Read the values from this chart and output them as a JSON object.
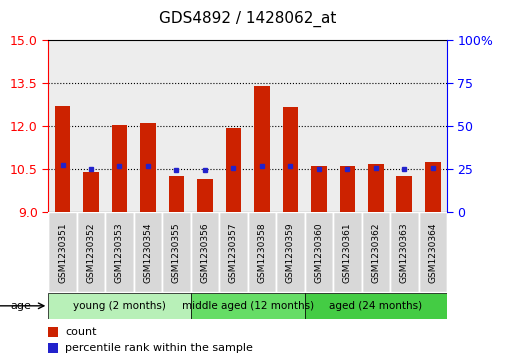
{
  "title": "GDS4892 / 1428062_at",
  "samples": [
    "GSM1230351",
    "GSM1230352",
    "GSM1230353",
    "GSM1230354",
    "GSM1230355",
    "GSM1230356",
    "GSM1230357",
    "GSM1230358",
    "GSM1230359",
    "GSM1230360",
    "GSM1230361",
    "GSM1230362",
    "GSM1230363",
    "GSM1230364"
  ],
  "count_values": [
    12.7,
    10.4,
    12.05,
    12.1,
    10.25,
    10.15,
    11.95,
    13.4,
    12.65,
    10.6,
    10.6,
    10.7,
    10.25,
    10.75
  ],
  "percentile_values": [
    10.65,
    10.5,
    10.62,
    10.63,
    10.48,
    10.47,
    10.55,
    10.63,
    10.63,
    10.52,
    10.5,
    10.55,
    10.5,
    10.55
  ],
  "y_min": 9,
  "y_max": 15,
  "y_ticks_left": [
    9,
    10.5,
    12,
    13.5,
    15
  ],
  "y_ticks_right_vals": [
    0,
    25,
    50,
    75,
    100
  ],
  "y_ticks_right_labels": [
    "0",
    "25",
    "50",
    "75",
    "100%"
  ],
  "bar_color": "#cc2200",
  "percentile_color": "#2222cc",
  "sample_cell_color": "#d8d8d8",
  "groups": [
    {
      "label": "young (2 months)",
      "start": 0,
      "end": 5,
      "color": "#b8f0b8"
    },
    {
      "label": "middle aged (12 months)",
      "start": 5,
      "end": 9,
      "color": "#66dd66"
    },
    {
      "label": "aged (24 months)",
      "start": 9,
      "end": 14,
      "color": "#44cc44"
    }
  ],
  "age_label": "age",
  "legend_count_label": "count",
  "legend_pct_label": "percentile rank within the sample",
  "title_fontsize": 11,
  "axis_tick_fontsize": 9,
  "bar_width": 0.55
}
